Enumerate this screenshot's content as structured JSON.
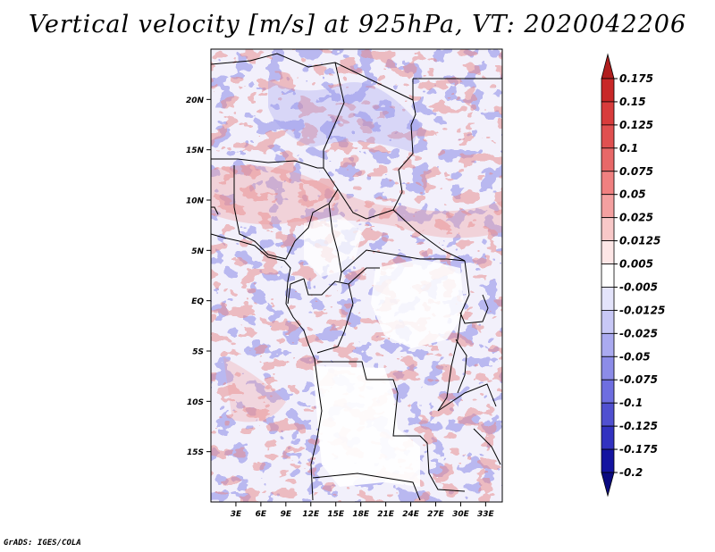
{
  "title": "Vertical velocity [m/s] at 925hPa, VT: 2020042206",
  "footer": "GrADS: IGES/COLA",
  "map": {
    "variable": "Vertical velocity",
    "units": "m/s",
    "level": "925hPa",
    "valid_time": "2020042206",
    "lon_range": [
      0,
      35
    ],
    "lat_range": [
      -20,
      25
    ],
    "lat_ticks": [
      {
        "value": 20,
        "label": "20N"
      },
      {
        "value": 15,
        "label": "15N"
      },
      {
        "value": 10,
        "label": "10N"
      },
      {
        "value": 5,
        "label": "5N"
      },
      {
        "value": 0,
        "label": "EQ"
      },
      {
        "value": -5,
        "label": "5S"
      },
      {
        "value": -10,
        "label": "10S"
      },
      {
        "value": -15,
        "label": "15S"
      }
    ],
    "lon_ticks": [
      {
        "value": 3,
        "label": "3E"
      },
      {
        "value": 6,
        "label": "6E"
      },
      {
        "value": 9,
        "label": "9E"
      },
      {
        "value": 12,
        "label": "12E"
      },
      {
        "value": 15,
        "label": "15E"
      },
      {
        "value": 18,
        "label": "18E"
      },
      {
        "value": 21,
        "label": "21E"
      },
      {
        "value": 24,
        "label": "24E"
      },
      {
        "value": 27,
        "label": "27E"
      },
      {
        "value": 30,
        "label": "30E"
      },
      {
        "value": 33,
        "label": "33E"
      }
    ]
  },
  "colorbar": {
    "labels": [
      "0.175",
      "0.15",
      "0.125",
      "0.1",
      "0.075",
      "0.05",
      "0.025",
      "0.0125",
      "0.005",
      "-0.005",
      "-0.0125",
      "-0.025",
      "-0.05",
      "-0.075",
      "-0.1",
      "-0.125",
      "-0.175",
      "-0.2"
    ],
    "colors": [
      "#b01e1e",
      "#c82828",
      "#d83c3c",
      "#e05050",
      "#e86868",
      "#f08080",
      "#f4a0a0",
      "#f8c8c8",
      "#fde6e6",
      "#ffffff",
      "#e4e4fb",
      "#c8c8f6",
      "#aaaaf0",
      "#8c8ce8",
      "#6e6ee0",
      "#5050d0",
      "#3232c0",
      "#1414a0",
      "#0a0a80"
    ]
  }
}
